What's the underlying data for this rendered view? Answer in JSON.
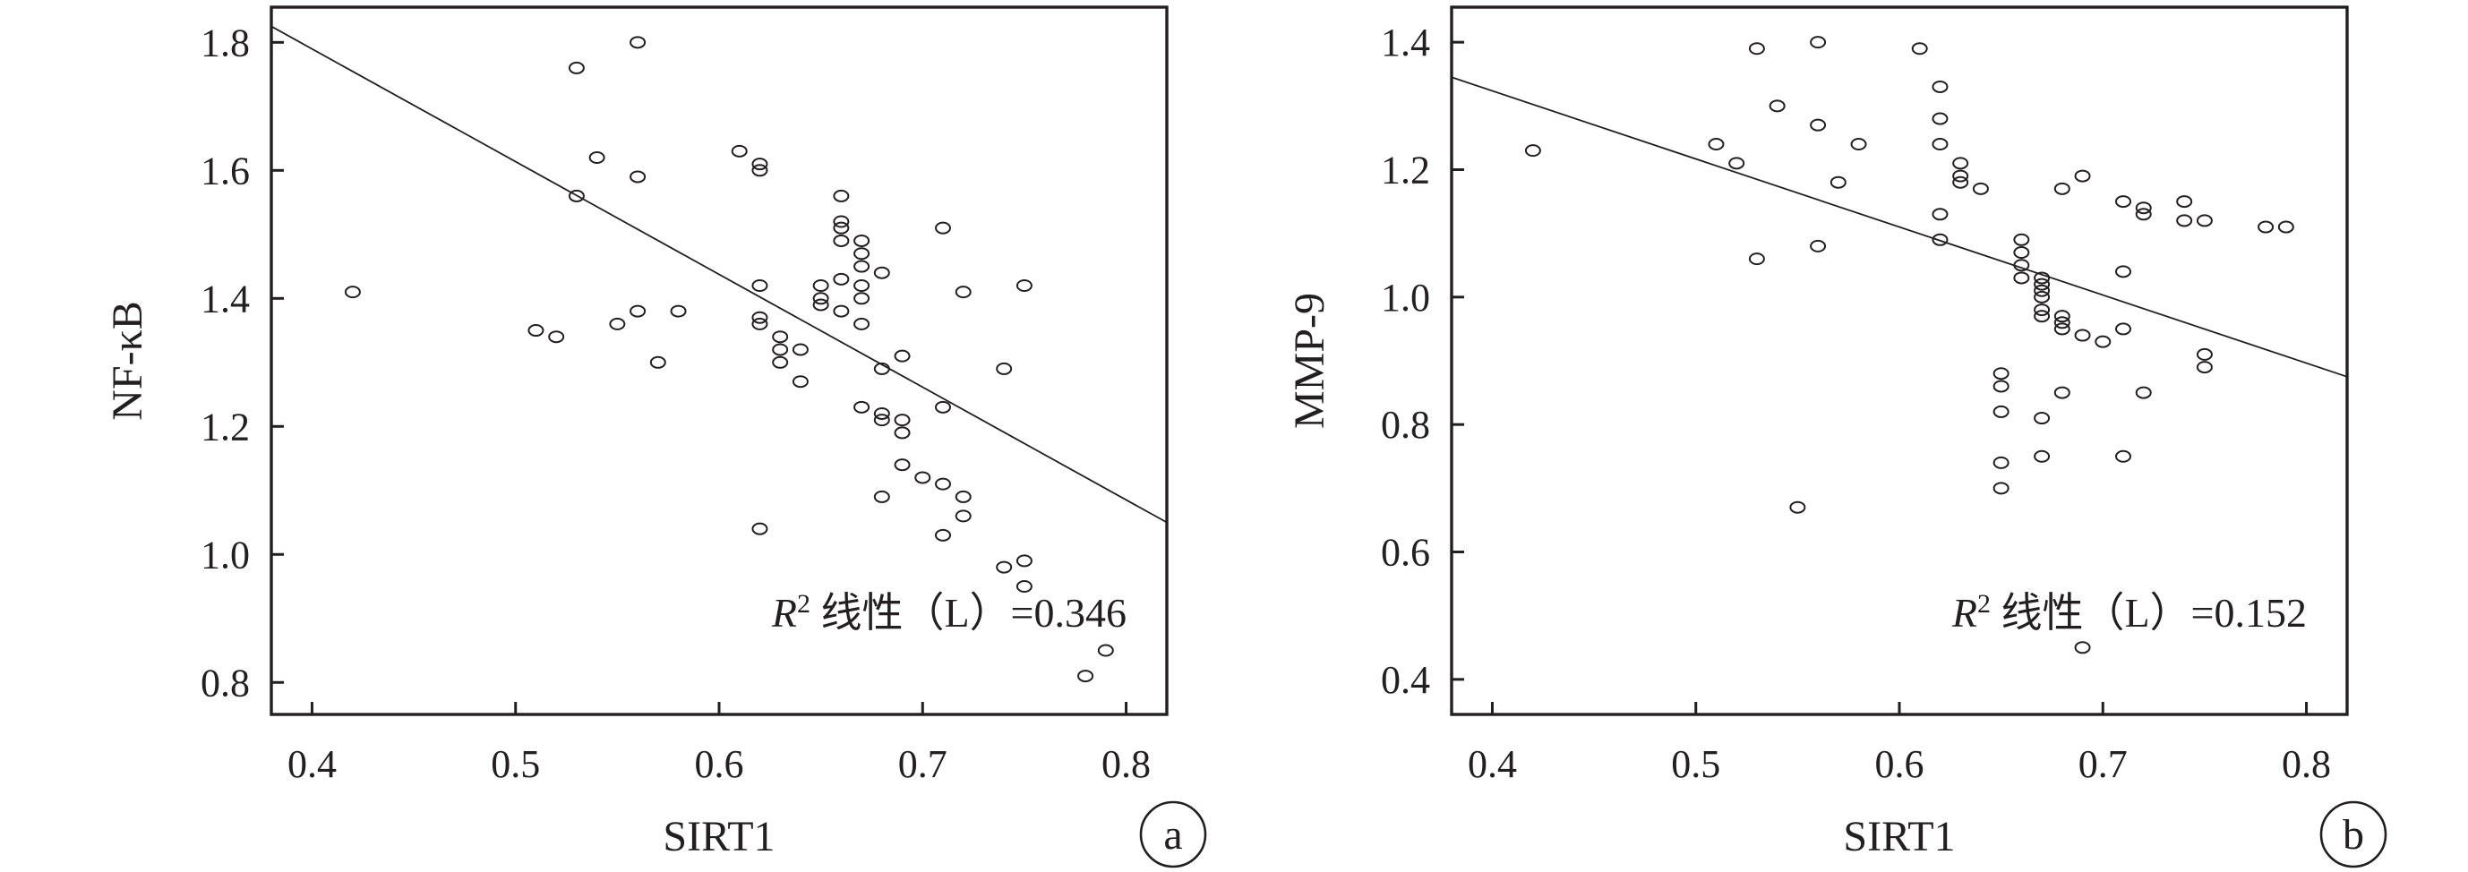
{
  "chart_data": [
    {
      "type": "scatter",
      "panel": "a",
      "xlabel": "SIRT1",
      "ylabel": "NF-κB",
      "xlim": [
        0.38,
        0.82
      ],
      "ylim": [
        0.75,
        1.855
      ],
      "xticks": [
        "0.4",
        "0.5",
        "0.6",
        "0.7",
        "0.8"
      ],
      "yticks": [
        "0.8",
        "1.0",
        "1.2",
        "1.4",
        "1.6",
        "1.8"
      ],
      "annotation": {
        "r": "R",
        "sup": "2",
        "text": " 线性（L）=0.346"
      },
      "fit_line": {
        "x": [
          0.38,
          0.82
        ],
        "y": [
          1.825,
          1.05
        ]
      },
      "points": [
        [
          0.42,
          1.41
        ],
        [
          0.51,
          1.35
        ],
        [
          0.52,
          1.34
        ],
        [
          0.53,
          1.76
        ],
        [
          0.53,
          1.56
        ],
        [
          0.54,
          1.62
        ],
        [
          0.55,
          1.36
        ],
        [
          0.56,
          1.8
        ],
        [
          0.56,
          1.59
        ],
        [
          0.56,
          1.38
        ],
        [
          0.57,
          1.3
        ],
        [
          0.58,
          1.38
        ],
        [
          0.61,
          1.63
        ],
        [
          0.62,
          1.61
        ],
        [
          0.62,
          1.6
        ],
        [
          0.62,
          1.42
        ],
        [
          0.62,
          1.37
        ],
        [
          0.62,
          1.36
        ],
        [
          0.62,
          1.04
        ],
        [
          0.63,
          1.34
        ],
        [
          0.63,
          1.32
        ],
        [
          0.63,
          1.3
        ],
        [
          0.64,
          1.32
        ],
        [
          0.64,
          1.27
        ],
        [
          0.65,
          1.42
        ],
        [
          0.65,
          1.4
        ],
        [
          0.65,
          1.39
        ],
        [
          0.66,
          1.56
        ],
        [
          0.66,
          1.52
        ],
        [
          0.66,
          1.51
        ],
        [
          0.66,
          1.49
        ],
        [
          0.66,
          1.43
        ],
        [
          0.66,
          1.38
        ],
        [
          0.67,
          1.49
        ],
        [
          0.67,
          1.47
        ],
        [
          0.67,
          1.45
        ],
        [
          0.67,
          1.42
        ],
        [
          0.67,
          1.4
        ],
        [
          0.67,
          1.36
        ],
        [
          0.67,
          1.23
        ],
        [
          0.68,
          1.44
        ],
        [
          0.68,
          1.29
        ],
        [
          0.68,
          1.22
        ],
        [
          0.68,
          1.21
        ],
        [
          0.68,
          1.09
        ],
        [
          0.69,
          1.31
        ],
        [
          0.69,
          1.21
        ],
        [
          0.69,
          1.19
        ],
        [
          0.69,
          1.14
        ],
        [
          0.7,
          1.12
        ],
        [
          0.71,
          1.51
        ],
        [
          0.71,
          1.23
        ],
        [
          0.71,
          1.11
        ],
        [
          0.71,
          1.03
        ],
        [
          0.72,
          1.41
        ],
        [
          0.72,
          1.09
        ],
        [
          0.72,
          1.06
        ],
        [
          0.74,
          1.29
        ],
        [
          0.74,
          0.98
        ],
        [
          0.75,
          1.42
        ],
        [
          0.75,
          0.99
        ],
        [
          0.75,
          0.95
        ],
        [
          0.78,
          0.81
        ],
        [
          0.79,
          0.85
        ]
      ]
    },
    {
      "type": "scatter",
      "panel": "b",
      "xlabel": "SIRT1",
      "ylabel": "MMP-9",
      "xlim": [
        0.38,
        0.82
      ],
      "ylim": [
        0.345,
        1.455
      ],
      "xticks": [
        "0.4",
        "0.5",
        "0.6",
        "0.7",
        "0.8"
      ],
      "yticks": [
        "0.4",
        "0.6",
        "0.8",
        "1.0",
        "1.2",
        "1.4"
      ],
      "annotation": {
        "r": "R",
        "sup": "2",
        "text": " 线性（L）=0.152"
      },
      "fit_line": {
        "x": [
          0.38,
          0.82
        ],
        "y": [
          1.345,
          0.875
        ]
      },
      "points": [
        [
          0.42,
          1.23
        ],
        [
          0.51,
          1.24
        ],
        [
          0.52,
          1.21
        ],
        [
          0.53,
          1.39
        ],
        [
          0.53,
          1.06
        ],
        [
          0.54,
          1.3
        ],
        [
          0.55,
          0.67
        ],
        [
          0.56,
          1.4
        ],
        [
          0.56,
          1.27
        ],
        [
          0.56,
          1.08
        ],
        [
          0.57,
          1.18
        ],
        [
          0.58,
          1.24
        ],
        [
          0.61,
          1.39
        ],
        [
          0.62,
          1.33
        ],
        [
          0.62,
          1.28
        ],
        [
          0.62,
          1.24
        ],
        [
          0.62,
          1.13
        ],
        [
          0.62,
          1.09
        ],
        [
          0.63,
          1.21
        ],
        [
          0.63,
          1.19
        ],
        [
          0.63,
          1.18
        ],
        [
          0.64,
          1.17
        ],
        [
          0.65,
          0.88
        ],
        [
          0.65,
          0.86
        ],
        [
          0.65,
          0.82
        ],
        [
          0.65,
          0.74
        ],
        [
          0.65,
          0.7
        ],
        [
          0.66,
          1.09
        ],
        [
          0.66,
          1.07
        ],
        [
          0.66,
          1.05
        ],
        [
          0.66,
          1.03
        ],
        [
          0.67,
          1.03
        ],
        [
          0.67,
          1.02
        ],
        [
          0.67,
          1.01
        ],
        [
          0.67,
          1.0
        ],
        [
          0.67,
          0.98
        ],
        [
          0.67,
          0.97
        ],
        [
          0.67,
          0.81
        ],
        [
          0.67,
          0.75
        ],
        [
          0.68,
          1.17
        ],
        [
          0.68,
          0.97
        ],
        [
          0.68,
          0.96
        ],
        [
          0.68,
          0.95
        ],
        [
          0.68,
          0.85
        ],
        [
          0.69,
          1.19
        ],
        [
          0.69,
          0.94
        ],
        [
          0.69,
          0.45
        ],
        [
          0.7,
          0.93
        ],
        [
          0.71,
          1.15
        ],
        [
          0.71,
          1.04
        ],
        [
          0.71,
          0.95
        ],
        [
          0.71,
          0.75
        ],
        [
          0.72,
          1.14
        ],
        [
          0.72,
          1.13
        ],
        [
          0.72,
          0.85
        ],
        [
          0.74,
          1.15
        ],
        [
          0.74,
          1.12
        ],
        [
          0.75,
          1.12
        ],
        [
          0.75,
          0.91
        ],
        [
          0.75,
          0.89
        ],
        [
          0.78,
          1.11
        ],
        [
          0.79,
          1.11
        ]
      ]
    }
  ]
}
